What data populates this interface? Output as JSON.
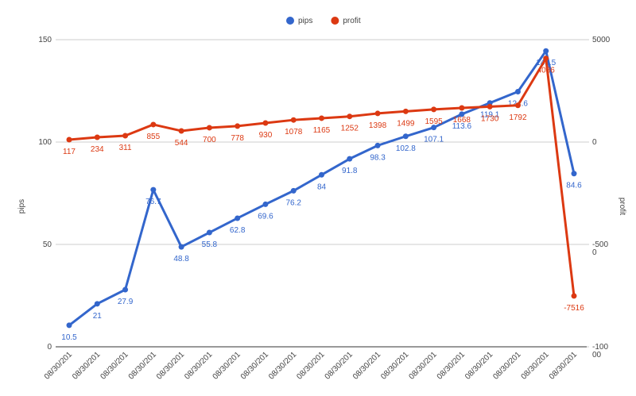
{
  "chart_data": {
    "type": "line",
    "categories": [
      "08/30/201",
      "08/30/201",
      "08/30/201",
      "08/30/201",
      "08/30/201",
      "08/30/201",
      "08/30/201",
      "08/30/201",
      "08/30/201",
      "08/30/201",
      "08/30/201",
      "08/30/201",
      "08/30/201",
      "08/30/201",
      "08/30/201",
      "08/30/201",
      "08/30/201",
      "08/30/201",
      "08/30/201"
    ],
    "series": [
      {
        "name": "pips",
        "color": "#3366cc",
        "values": [
          10.5,
          21,
          27.9,
          76.7,
          48.8,
          55.8,
          62.8,
          69.6,
          76.2,
          84,
          91.8,
          98.3,
          102.8,
          107.1,
          113.6,
          119.1,
          124.6,
          144.5,
          84.6
        ]
      },
      {
        "name": "profit",
        "color": "#dc3912",
        "axis": "y2",
        "values": [
          117,
          234,
          311,
          855,
          544,
          700,
          778,
          930,
          1078,
          1165,
          1252,
          1398,
          1499,
          1595,
          1668,
          1730,
          1792,
          4086,
          -7516
        ]
      }
    ],
    "ylabel": "pips",
    "y2label": "profit",
    "ylim": [
      0,
      150
    ],
    "yticks": [
      0,
      50,
      100,
      150
    ],
    "y2lim": [
      -10000,
      5000
    ],
    "y2ticks": [
      -10000,
      -5000,
      0,
      5000
    ],
    "grid": true,
    "legend": "top"
  }
}
